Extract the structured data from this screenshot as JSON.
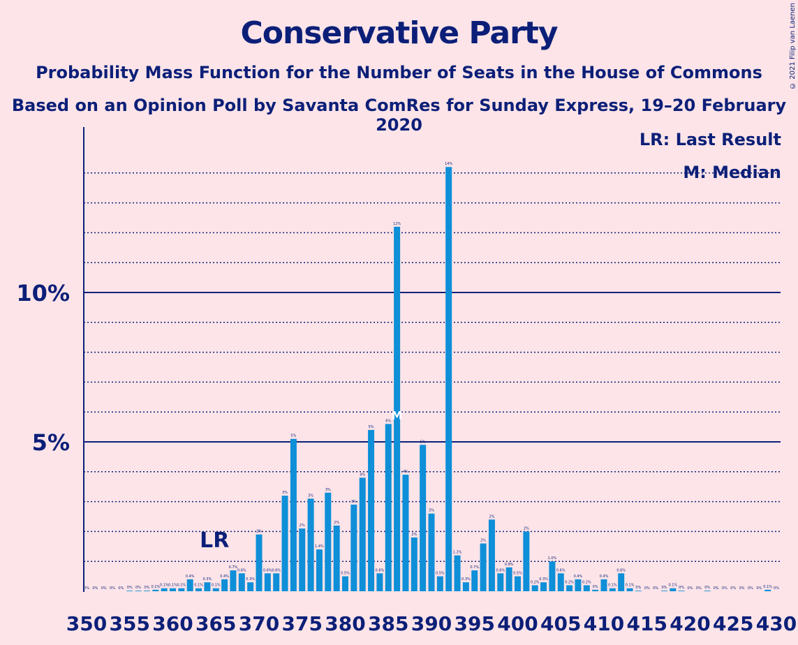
{
  "header": {
    "title": "Conservative Party",
    "subtitle": "Probability Mass Function for the Number of Seats in the House of Commons",
    "subtitle2": "Based on an Opinion Poll by Savanta ComRes for Sunday Express, 19–20 February 2020",
    "credit": "© 2021 Filip van Laenen"
  },
  "legend": {
    "last_result": "LR: Last Result",
    "median": "M: Median"
  },
  "markers": {
    "last_result_label": "LR",
    "last_result_seat": 365,
    "median_label": "M",
    "median_seat": 386
  },
  "colors": {
    "background": "#fce4e8",
    "bar": "#0e8fd8",
    "axis": "#0c1f78",
    "text": "#0c1f78"
  },
  "chart_data": {
    "type": "bar",
    "x_start": 350,
    "x_end": 430,
    "xlim": [
      350,
      430
    ],
    "ylim": [
      0,
      15.5
    ],
    "y_major_ticks": [
      5,
      10
    ],
    "y_tick_labels": [
      "5%",
      "10%"
    ],
    "y_minor_gridlines": [
      1,
      2,
      3,
      4,
      6,
      7,
      8,
      9,
      11,
      12,
      13,
      14
    ],
    "x_tick_labels": [
      "350",
      "355",
      "360",
      "365",
      "370",
      "375",
      "380",
      "385",
      "390",
      "395",
      "400",
      "405",
      "410",
      "415",
      "420",
      "425",
      "430"
    ],
    "values": [
      0,
      0,
      0,
      0,
      0,
      0.02,
      0.02,
      0.02,
      0.05,
      0.1,
      0.1,
      0.1,
      0.4,
      0.1,
      0.3,
      0.1,
      0.4,
      0.7,
      0.6,
      0.3,
      1.9,
      0.6,
      0.6,
      3.2,
      5.1,
      2.1,
      3.1,
      1.4,
      3.3,
      2.2,
      0.5,
      2.9,
      3.8,
      5.4,
      0.6,
      5.6,
      12.2,
      3.9,
      1.8,
      4.9,
      2.6,
      0.5,
      14.2,
      1.2,
      0.3,
      0.7,
      1.6,
      2.4,
      0.6,
      0.8,
      0.5,
      2.0,
      0.2,
      0.3,
      1.0,
      0.6,
      0.2,
      0.4,
      0.2,
      0.05,
      0.4,
      0.1,
      0.6,
      0.1,
      0.02,
      0,
      0,
      0.02,
      0.1,
      0.02,
      0,
      0,
      0.02,
      0,
      0,
      0,
      0,
      0,
      0,
      0.05,
      0
    ],
    "data_labels": [
      "0%",
      "0%",
      "0%",
      "0%",
      "0%",
      "0%",
      "0%",
      "0%",
      "0.1%",
      "0.1%",
      "0.1%",
      "0.1%",
      "0.4%",
      "0.1%",
      "0.3%",
      "0.1%",
      "0.4%",
      "0.7%",
      "0.6%",
      "0.3%",
      "2%",
      "0.6%",
      "0.6%",
      "3%",
      "5%",
      "2%",
      "3%",
      "1.4%",
      "3%",
      "2%",
      "0.5%",
      "3%",
      "4%",
      "5%",
      "0.6%",
      "6%",
      "12%",
      "4%",
      "2%",
      "5%",
      "3%",
      "0.5%",
      "14%",
      "1.2%",
      "0.3%",
      "0.7%",
      "2%",
      "2%",
      "0.6%",
      "0.8%",
      "0.5%",
      "2%",
      "0.2%",
      "0.3%",
      "1.0%",
      "0.6%",
      "0.2%",
      "0.4%",
      "0.2%",
      "0%",
      "0.4%",
      "0.1%",
      "0.6%",
      "0.1%",
      "0%",
      "0%",
      "0%",
      "0%",
      "0.1%",
      "0%",
      "0%",
      "0%",
      "0%",
      "0%",
      "0%",
      "0%",
      "0%",
      "0%",
      "0%",
      "0.1%",
      "0%"
    ]
  }
}
